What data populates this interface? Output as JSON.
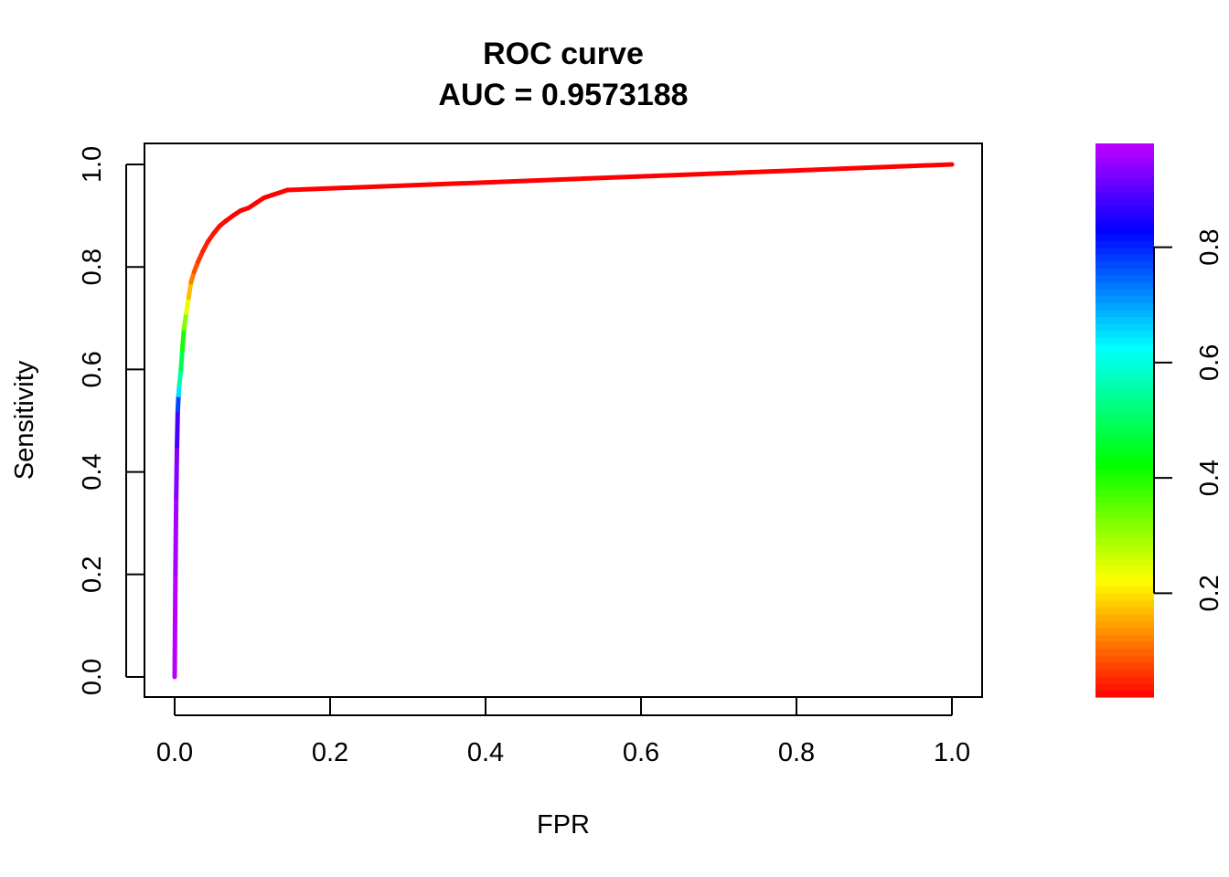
{
  "chart_data": {
    "type": "line",
    "title": "ROC curve",
    "subtitle": "AUC = 0.9573188",
    "xlabel": "FPR",
    "ylabel": "Sensitivity",
    "xlim": [
      0,
      1
    ],
    "ylim": [
      0,
      1
    ],
    "x_ticks": [
      "0.0",
      "0.2",
      "0.4",
      "0.6",
      "0.8",
      "1.0"
    ],
    "y_ticks": [
      "0.0",
      "0.2",
      "0.4",
      "0.6",
      "0.8",
      "1.0"
    ],
    "grid": false,
    "series": [
      {
        "x": [
          0.0,
          0.001,
          0.002,
          0.003,
          0.004,
          0.005,
          0.006,
          0.008,
          0.01,
          0.012,
          0.015,
          0.018,
          0.021,
          0.025,
          0.03,
          0.036,
          0.043,
          0.05,
          0.058,
          0.066,
          0.075,
          0.085,
          0.095,
          0.105,
          0.115,
          0.125,
          0.135,
          0.145,
          1.0
        ],
        "y": [
          0.0,
          0.2,
          0.35,
          0.45,
          0.52,
          0.55,
          0.57,
          0.6,
          0.64,
          0.68,
          0.71,
          0.74,
          0.77,
          0.79,
          0.81,
          0.83,
          0.85,
          0.865,
          0.88,
          0.89,
          0.9,
          0.91,
          0.915,
          0.925,
          0.935,
          0.94,
          0.945,
          0.95,
          1.0
        ],
        "color_by_threshold": [
          0.98,
          0.97,
          0.95,
          0.92,
          0.85,
          0.7,
          0.6,
          0.52,
          0.45,
          0.36,
          0.28,
          0.2,
          0.14,
          0.1,
          0.07,
          0.05,
          0.04,
          0.035,
          0.03,
          0.025,
          0.02,
          0.02,
          0.02,
          0.02,
          0.02,
          0.02,
          0.02,
          0.02,
          0.02
        ]
      }
    ],
    "colorbar": {
      "range": [
        0.02,
        0.98
      ],
      "ticks": [
        "0.2",
        "0.4",
        "0.6",
        "0.8"
      ],
      "tick_values": [
        0.2,
        0.4,
        0.6,
        0.8
      ],
      "colormap": "rainbow red-yellow-green-cyan-blue-purple"
    }
  }
}
